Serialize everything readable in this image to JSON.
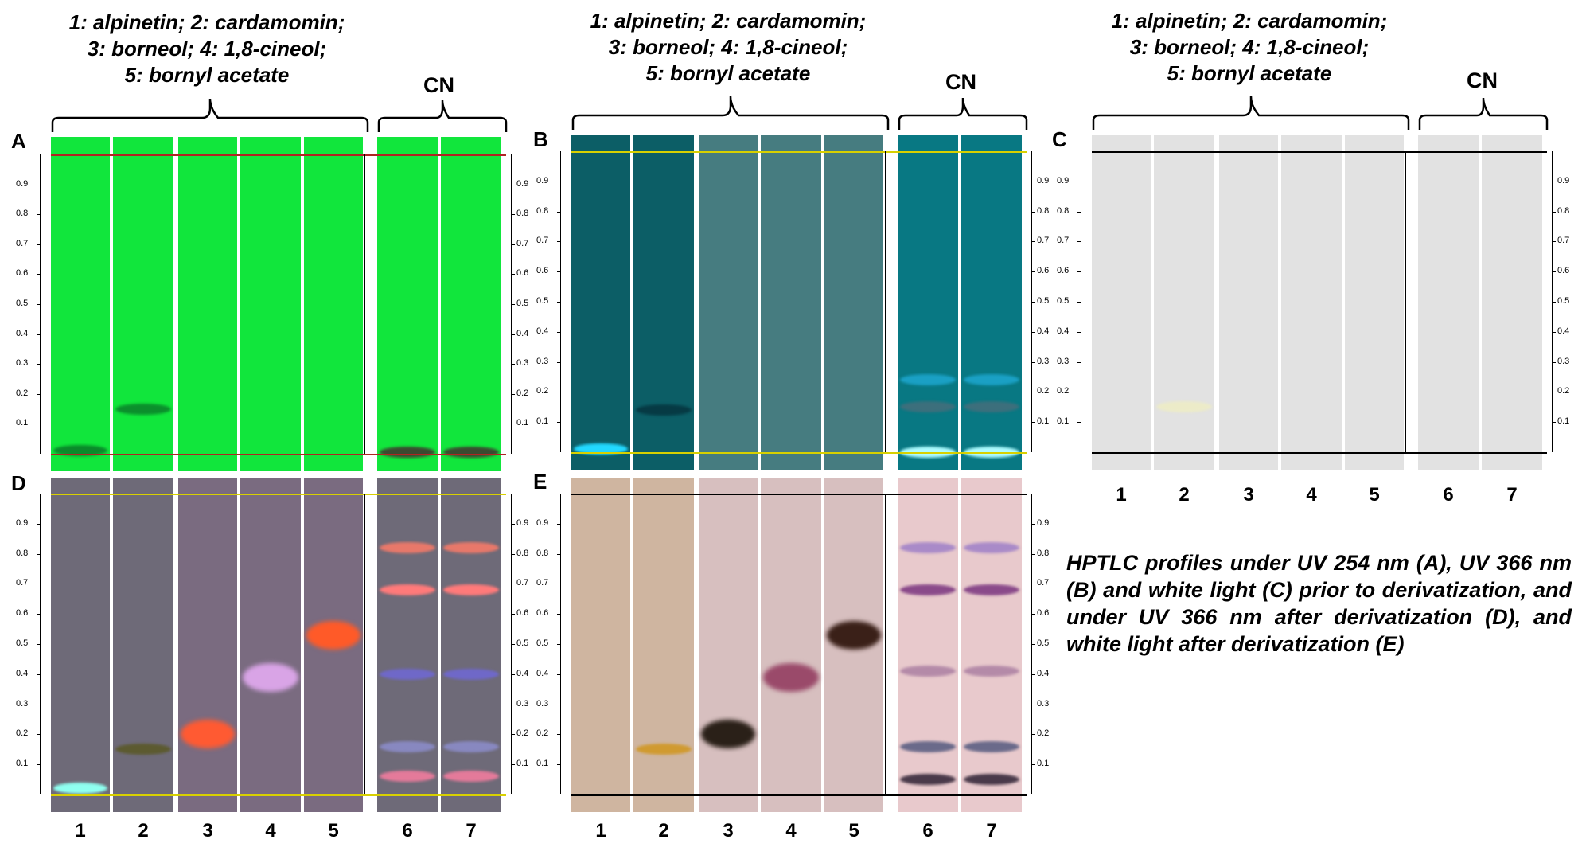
{
  "header_lines": [
    "1: alpinetin; 2: cardamomin;",
    "3: borneol; 4: 1,8-cineol;",
    "5: bornyl acetate"
  ],
  "cn_label": "CN",
  "panel_labels": {
    "A": "A",
    "B": "B",
    "C": "C",
    "D": "D",
    "E": "E"
  },
  "rf_ticks": [
    "0.9",
    "0.8",
    "0.7",
    "0.6",
    "0.5",
    "0.4",
    "0.3",
    "0.2",
    "0.1"
  ],
  "lane_numbers": [
    "1",
    "2",
    "3",
    "4",
    "5",
    "6",
    "7"
  ],
  "caption": "HPTLC profiles under UV 254 nm (A), UV 366 nm (B) and white light (C) prior to derivatization, and under UV 366 nm after derivatization (D), and white light after derivatization (E)",
  "colors": {
    "A_bg": "#11e63c",
    "B_bg_std": "#0c5e66",
    "B_bg_std2": "#467c80",
    "B_bg_cn": "#087883",
    "C_bg": "#e2e2e2",
    "D_bg": "#6e6a78",
    "D_bg2": "#7a6b80",
    "E_bg": "#cfb5a0",
    "E_bg2": "#d7bfbf",
    "E_bg_cn": "#e8c9cc",
    "front_line_A": "#b22222",
    "front_line_yellow": "#d8d000",
    "front_line_C": "#000000"
  },
  "bands": {
    "A": [
      {
        "lane": 1,
        "rf": 0.01,
        "color": "#0a8a2a"
      },
      {
        "lane": 2,
        "rf": 0.15,
        "color": "#0b8f2c"
      },
      {
        "lane": 6,
        "rf": 0.005,
        "color": "#3a4a30"
      },
      {
        "lane": 7,
        "rf": 0.005,
        "color": "#3a4a30"
      }
    ],
    "B": [
      {
        "lane": 1,
        "rf": 0.01,
        "color": "#22d8ff"
      },
      {
        "lane": 2,
        "rf": 0.14,
        "color": "#063a44"
      },
      {
        "lane": 6,
        "rf": 0.0,
        "color": "#aefcff"
      },
      {
        "lane": 6,
        "rf": 0.24,
        "color": "#1aa0c4"
      },
      {
        "lane": 6,
        "rf": 0.15,
        "color": "#3c6f7c"
      },
      {
        "lane": 7,
        "rf": 0.0,
        "color": "#aefcff"
      },
      {
        "lane": 7,
        "rf": 0.24,
        "color": "#1aa0c4"
      },
      {
        "lane": 7,
        "rf": 0.15,
        "color": "#3c6f7c"
      }
    ],
    "C": [
      {
        "lane": 2,
        "rf": 0.15,
        "color": "#ecebc8"
      }
    ],
    "D": [
      {
        "lane": 1,
        "rf": 0.02,
        "color": "#8ffff0"
      },
      {
        "lane": 2,
        "rf": 0.15,
        "color": "#5c5a30"
      },
      {
        "lane": 3,
        "rf": 0.2,
        "color": "#ff5a32"
      },
      {
        "lane": 4,
        "rf": 0.39,
        "color": "#d9a4e6"
      },
      {
        "lane": 5,
        "rf": 0.53,
        "color": "#ff5a28"
      },
      {
        "lane": 6,
        "rf": 0.82,
        "color": "#e8786a"
      },
      {
        "lane": 6,
        "rf": 0.68,
        "color": "#ff7a7a"
      },
      {
        "lane": 6,
        "rf": 0.4,
        "color": "#6f68c8"
      },
      {
        "lane": 6,
        "rf": 0.16,
        "color": "#8888c0"
      },
      {
        "lane": 6,
        "rf": 0.06,
        "color": "#e47a9a"
      },
      {
        "lane": 7,
        "rf": 0.82,
        "color": "#e8786a"
      },
      {
        "lane": 7,
        "rf": 0.68,
        "color": "#ff7a7a"
      },
      {
        "lane": 7,
        "rf": 0.4,
        "color": "#6f68c8"
      },
      {
        "lane": 7,
        "rf": 0.16,
        "color": "#8888c0"
      },
      {
        "lane": 7,
        "rf": 0.06,
        "color": "#e47a9a"
      }
    ],
    "E": [
      {
        "lane": 2,
        "rf": 0.15,
        "color": "#d09a30"
      },
      {
        "lane": 3,
        "rf": 0.2,
        "color": "#2a2018"
      },
      {
        "lane": 4,
        "rf": 0.39,
        "color": "#9a4a6a"
      },
      {
        "lane": 5,
        "rf": 0.53,
        "color": "#3a2018"
      },
      {
        "lane": 6,
        "rf": 0.82,
        "color": "#a98ac8"
      },
      {
        "lane": 6,
        "rf": 0.68,
        "color": "#8a4a8a"
      },
      {
        "lane": 6,
        "rf": 0.41,
        "color": "#b48aa8"
      },
      {
        "lane": 6,
        "rf": 0.16,
        "color": "#6a6a8a"
      },
      {
        "lane": 6,
        "rf": 0.05,
        "color": "#4a3a4a"
      },
      {
        "lane": 7,
        "rf": 0.82,
        "color": "#a98ac8"
      },
      {
        "lane": 7,
        "rf": 0.68,
        "color": "#8a4a8a"
      },
      {
        "lane": 7,
        "rf": 0.41,
        "color": "#b48aa8"
      },
      {
        "lane": 7,
        "rf": 0.16,
        "color": "#6a6a8a"
      },
      {
        "lane": 7,
        "rf": 0.05,
        "color": "#4a3a4a"
      }
    ]
  }
}
